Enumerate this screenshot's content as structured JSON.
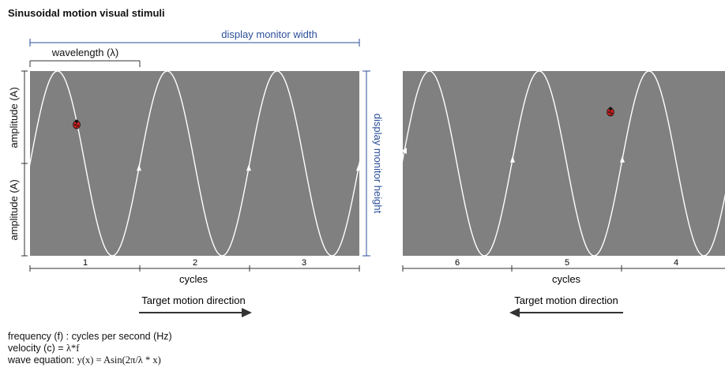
{
  "title": "Sinusoidal motion visual stimuli",
  "labels": {
    "display_width": "display monitor width",
    "display_height": "display monitor height",
    "wavelength": "wavelength (λ)",
    "amplitude_top": "amplitude (A)",
    "amplitude_bottom": "amplitude (A)",
    "cycles_left": "cycles",
    "cycles_right": "cycles",
    "direction_left": "Target motion direction",
    "direction_right": "Target motion direction"
  },
  "left_panel": {
    "cycle_labels": [
      "1",
      "2",
      "3"
    ]
  },
  "right_panel": {
    "cycle_labels": [
      "6",
      "5",
      "4"
    ]
  },
  "equations": {
    "frequency_label": "frequency (f) : cycles per second (Hz)",
    "velocity_prefix": "velocity (c) = ",
    "velocity_expr": "λ*f",
    "wave_prefix": "wave equation: ",
    "wave_expr": "y(x) = Asin(2π/λ * x)"
  },
  "colors": {
    "panel": "#808080",
    "wave": "#ffffff",
    "annotation_blue": "#2b4f9a",
    "target": "#d42020"
  },
  "icons": {
    "target": "ladybug-target-icon",
    "direction": "arrow-icon"
  }
}
